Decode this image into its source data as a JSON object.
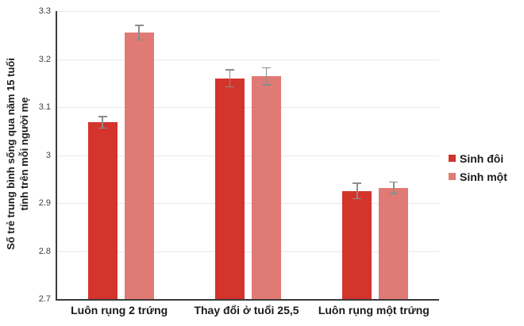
{
  "chart_data": {
    "type": "bar",
    "title": "",
    "categories": [
      "Luôn rụng 2 trứng",
      "Thay đổi ở tuổi 25,5",
      "Luôn rụng một trứng"
    ],
    "series": [
      {
        "name": "Sinh đôi",
        "color": "#d3342c",
        "values": [
          3.068,
          3.16,
          2.925
        ],
        "errors": [
          0.012,
          0.018,
          0.016
        ]
      },
      {
        "name": "Sinh một",
        "color": "#e07a74",
        "values": [
          3.255,
          3.164,
          2.932
        ],
        "errors": [
          0.015,
          0.018,
          0.012
        ]
      }
    ],
    "ylabel_line1": "Số trẻ trung bình sống qua năm 15 tuổi",
    "ylabel_line2": "tính trên mỗi người mẹ",
    "xlabel": "",
    "ylim": [
      2.7,
      3.3
    ],
    "ytick_step": 0.1,
    "yticks": [
      "3.3",
      "3.2",
      "3.1",
      "3",
      "2.9",
      "2.8",
      "2.7"
    ],
    "grid": true,
    "legend_position": "right",
    "colors": {
      "axis": "#3b3b3b",
      "grid": "#e7e7e7",
      "error_bar": "#8c8c8c",
      "tick_label": "#3f3f3f",
      "text": "#1b1b1b",
      "background": "#ffffff"
    }
  }
}
